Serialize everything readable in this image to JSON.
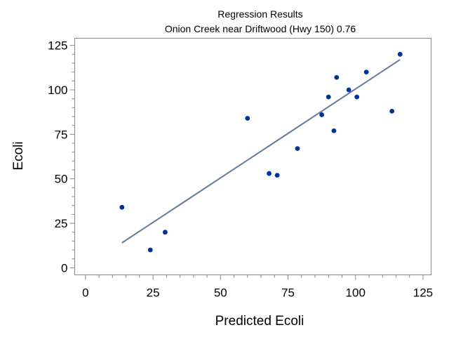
{
  "chart_data": {
    "type": "scatter",
    "title": "Regression Results",
    "subtitle": "Onion Creek near Driftwood (Hwy 150) 0.76",
    "xlabel": "Predicted Ecoli",
    "ylabel": "Ecoli",
    "xlim": [
      -4,
      128
    ],
    "ylim": [
      -4,
      129
    ],
    "xticks": [
      0,
      25,
      50,
      75,
      100,
      125
    ],
    "yticks": [
      0,
      25,
      50,
      75,
      100,
      125
    ],
    "x_minor_step": 5,
    "y_minor_step": 5,
    "grid": false,
    "points": [
      {
        "x": 13.5,
        "y": 34
      },
      {
        "x": 24,
        "y": 10
      },
      {
        "x": 29.5,
        "y": 20
      },
      {
        "x": 60,
        "y": 84
      },
      {
        "x": 68,
        "y": 53
      },
      {
        "x": 71,
        "y": 52
      },
      {
        "x": 78.5,
        "y": 67
      },
      {
        "x": 87.5,
        "y": 86
      },
      {
        "x": 90,
        "y": 96
      },
      {
        "x": 92,
        "y": 77
      },
      {
        "x": 93,
        "y": 107
      },
      {
        "x": 97.5,
        "y": 100
      },
      {
        "x": 100.5,
        "y": 96
      },
      {
        "x": 104,
        "y": 110
      },
      {
        "x": 113.5,
        "y": 88
      },
      {
        "x": 116.5,
        "y": 120
      }
    ],
    "fit_line": {
      "x": [
        13.5,
        116.5
      ],
      "y": [
        14,
        117
      ]
    },
    "colors": {
      "points": "#003399",
      "fit_line": "#667a99",
      "frame": "#888888"
    }
  }
}
